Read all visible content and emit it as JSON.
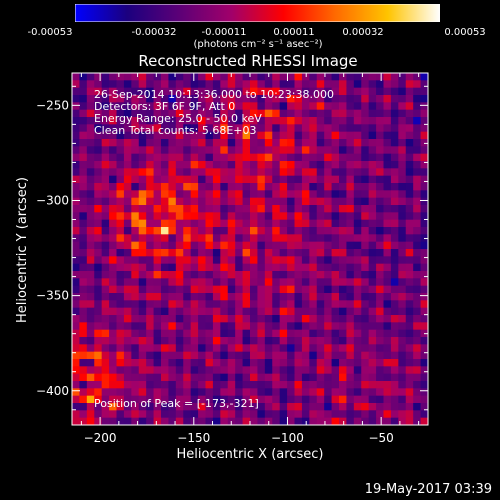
{
  "colorbar": {
    "tick_labels": [
      "-0.00053",
      "-0.00032",
      "-0.00011",
      "0.00011",
      "0.00032",
      "0.00053"
    ],
    "units": "(photons cm⁻² s⁻¹ asec⁻²)",
    "stops": [
      "#0000ff",
      "#1b007f",
      "#5c0077",
      "#a1006a",
      "#ff0000",
      "#ff6a00",
      "#ffc400",
      "#ffffff"
    ]
  },
  "annotations": {
    "time_range": "26-Sep-2014 10:13:36.000 to 10:23:38.000",
    "detectors": "Detectors: 3F 6F 9F, Att 0",
    "energy": "Energy Range: 25.0 - 50.0 keV",
    "clean": "Clean    Total counts: 5.68E+03",
    "peak": "Position of Peak = [-173,-321]"
  },
  "footer": "19-May-2017 03:39",
  "chart_data": {
    "type": "heatmap",
    "title": "Reconstructed RHESSI Image",
    "xlabel": "Heliocentric X (arcsec)",
    "ylabel": "Heliocentric Y (arcsec)",
    "xlim": [
      -215,
      -25
    ],
    "ylim": [
      -418,
      -233
    ],
    "xticks": [
      -200,
      -150,
      -100,
      -50
    ],
    "yticks": [
      -250,
      -300,
      -350,
      -400
    ],
    "zlim": [
      -0.00053,
      0.00053
    ],
    "peak": [
      -173,
      -321
    ],
    "sources": [
      {
        "x": -170,
        "y": -306,
        "value": 0.0005,
        "width": 18
      },
      {
        "x": -207,
        "y": -392,
        "value": 0.00042,
        "width": 18
      },
      {
        "x": -112,
        "y": -265,
        "value": 0.0003,
        "width": 22
      },
      {
        "x": -110,
        "y": -325,
        "value": 0.00018,
        "width": 25
      },
      {
        "x": -63,
        "y": -398,
        "value": 0.00012,
        "width": 25
      },
      {
        "x": -145,
        "y": -355,
        "value": 8e-05,
        "width": 30
      }
    ]
  }
}
